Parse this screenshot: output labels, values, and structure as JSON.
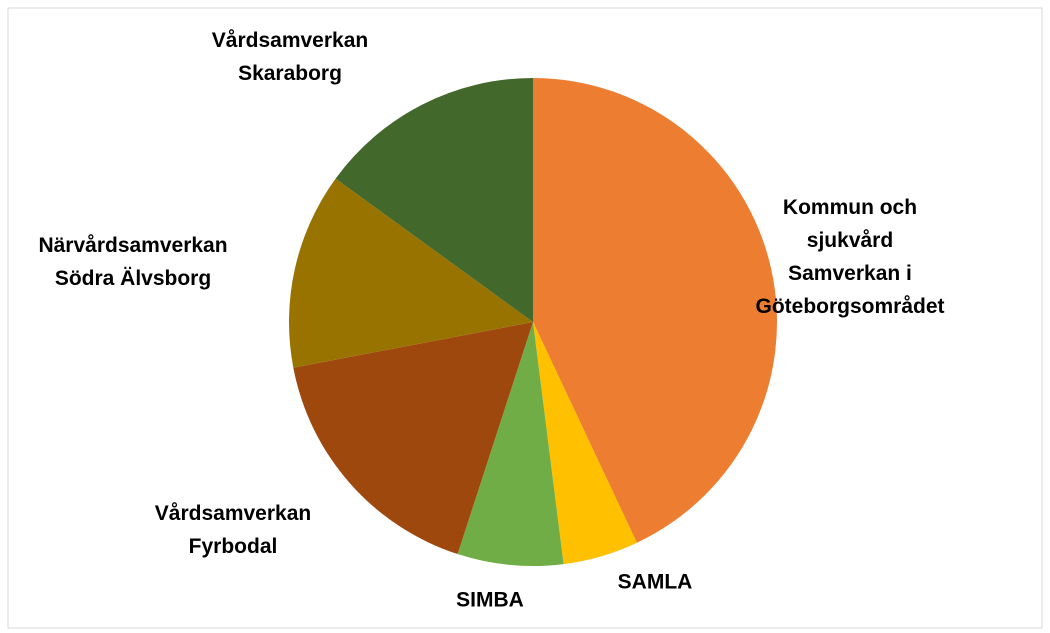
{
  "chart_data": {
    "type": "pie",
    "categories": [
      "Kommun och sjukvård\nSamverkan i\nGöteborgsområdet",
      "SAMLA",
      "SIMBA",
      "Vårdsamverkan\nFyrbodal",
      "Närvårdsamverkan\nSödra Älvsborg",
      "Vårdsamverkan\nSkaraborg"
    ],
    "values": [
      43,
      5,
      7,
      17,
      13,
      15
    ],
    "colors": [
      "#ED7D31",
      "#FFC000",
      "#70AD47",
      "#9E480E",
      "#997300",
      "#43682B"
    ]
  }
}
